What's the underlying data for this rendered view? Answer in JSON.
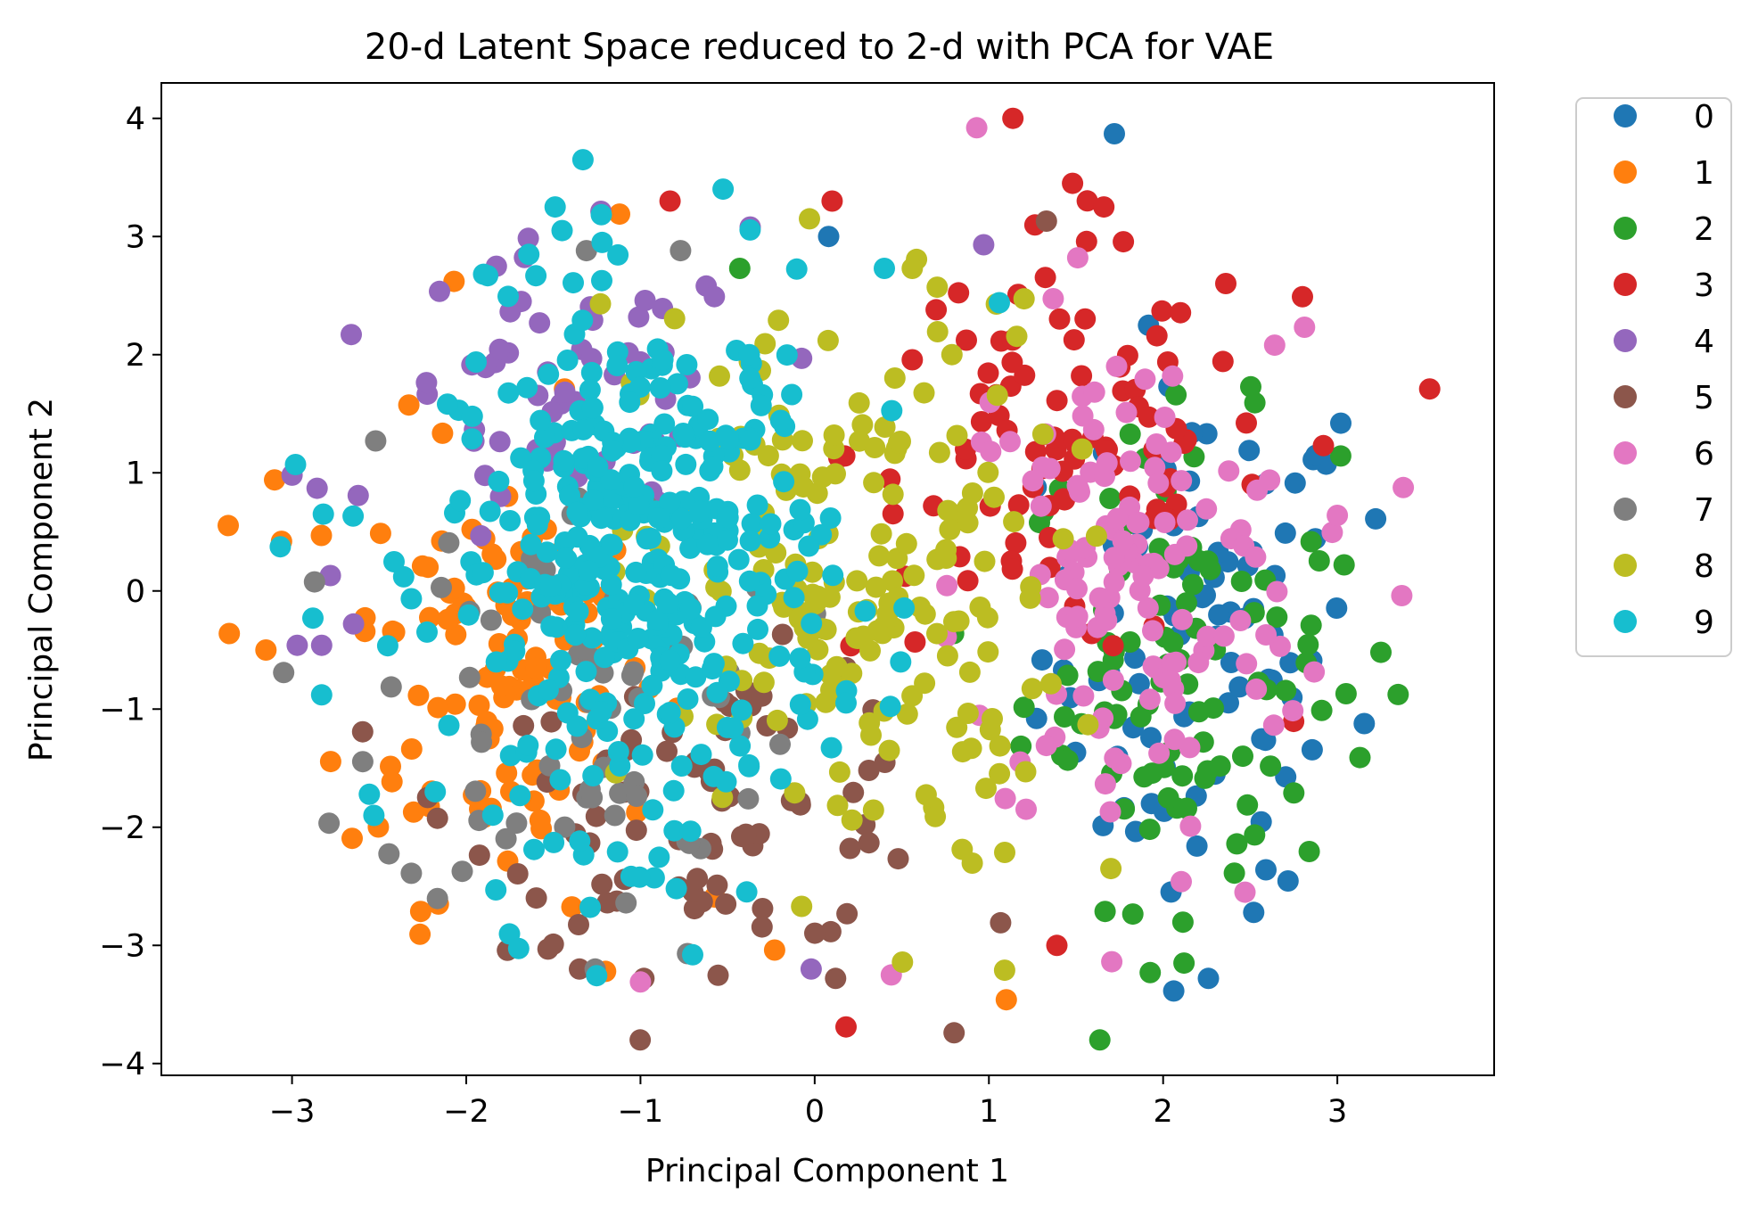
{
  "chart_data": {
    "type": "scatter",
    "title": "20-d Latent Space reduced to 2-d with PCA for VAE",
    "xlabel": "Principal Component 1",
    "ylabel": "Principal Component 2",
    "xlim": [
      -3.75,
      3.9
    ],
    "ylim": [
      -4.1,
      4.3
    ],
    "xticks": [
      -3,
      -2,
      -1,
      0,
      1,
      2,
      3
    ],
    "yticks": [
      -4,
      -3,
      -2,
      -1,
      0,
      1,
      2,
      3,
      4
    ],
    "xtick_labels": [
      "−3",
      "−2",
      "−1",
      "0",
      "1",
      "2",
      "3"
    ],
    "ytick_labels": [
      "−4",
      "−3",
      "−2",
      "−1",
      "0",
      "1",
      "2",
      "3",
      "4"
    ],
    "grid": false,
    "legend_position": "outside upper right",
    "series": [
      {
        "name": "0",
        "color": "#1f77b4",
        "center": [
          2.2,
          -0.5
        ],
        "spread": [
          0.45,
          1.1
        ],
        "count": 90,
        "outliers": [
          [
            1.72,
            3.87
          ],
          [
            2.26,
            -3.28
          ],
          [
            3.22,
            0.61
          ],
          [
            2.59,
            -2.36
          ],
          [
            0.08,
            3.0
          ],
          [
            3.02,
            1.42
          ]
        ]
      },
      {
        "name": "1",
        "color": "#ff7f0e",
        "center": [
          -1.8,
          -0.6
        ],
        "spread": [
          0.45,
          1.0
        ],
        "count": 110,
        "outliers": [
          [
            -3.36,
            -0.36
          ],
          [
            -3.15,
            -0.5
          ],
          [
            -3.1,
            0.94
          ],
          [
            -3.06,
            0.42
          ],
          [
            -2.16,
            -2.65
          ],
          [
            -1.12,
            3.19
          ],
          [
            -2.07,
            2.62
          ],
          [
            1.1,
            -3.46
          ],
          [
            -0.23,
            -3.04
          ],
          [
            -1.2,
            -3.22
          ]
        ]
      },
      {
        "name": "2",
        "color": "#2ca02c",
        "center": [
          2.1,
          -0.6
        ],
        "spread": [
          0.45,
          1.0
        ],
        "count": 100,
        "outliers": [
          [
            3.25,
            -0.52
          ],
          [
            3.13,
            -1.41
          ],
          [
            3.05,
            -0.87
          ],
          [
            2.12,
            -3.15
          ],
          [
            2.75,
            -1.71
          ],
          [
            -0.43,
            2.73
          ]
        ]
      },
      {
        "name": "3",
        "color": "#d62728",
        "center": [
          1.4,
          1.2
        ],
        "spread": [
          0.6,
          0.9
        ],
        "count": 95,
        "outliers": [
          [
            3.53,
            1.71
          ],
          [
            2.8,
            2.49
          ],
          [
            0.1,
            3.3
          ],
          [
            0.18,
            -3.69
          ],
          [
            1.39,
            -3.0
          ],
          [
            2.92,
            1.23
          ],
          [
            -0.83,
            3.3
          ],
          [
            1.48,
            3.45
          ],
          [
            1.66,
            3.25
          ]
        ]
      },
      {
        "name": "4",
        "color": "#9467bd",
        "center": [
          -1.4,
          1.5
        ],
        "spread": [
          0.55,
          0.7
        ],
        "count": 60,
        "outliers": [
          [
            -3.0,
            0.98
          ],
          [
            -2.97,
            -0.46
          ],
          [
            -2.83,
            -0.46
          ],
          [
            -2.78,
            0.13
          ],
          [
            -2.66,
            2.17
          ],
          [
            -0.37,
            3.08
          ],
          [
            0.97,
            2.93
          ],
          [
            -0.02,
            -3.2
          ]
        ]
      },
      {
        "name": "5",
        "color": "#8c564b",
        "center": [
          -0.6,
          -1.8
        ],
        "spread": [
          0.7,
          0.6
        ],
        "count": 80,
        "outliers": [
          [
            0.8,
            -3.74
          ],
          [
            1.33,
            3.13
          ],
          [
            0.12,
            -3.28
          ],
          [
            -1.35,
            -3.2
          ],
          [
            -1.5,
            -2.99
          ],
          [
            -0.98,
            -3.28
          ]
        ]
      },
      {
        "name": "6",
        "color": "#e377c2",
        "center": [
          1.8,
          0.0
        ],
        "spread": [
          0.5,
          1.1
        ],
        "count": 130,
        "outliers": [
          [
            0.93,
            3.92
          ],
          [
            3.37,
            -0.04
          ],
          [
            3.0,
            0.64
          ],
          [
            2.64,
            2.08
          ],
          [
            2.47,
            -2.55
          ],
          [
            -1.0,
            -3.31
          ],
          [
            0.44,
            -3.25
          ],
          [
            1.51,
            2.82
          ]
        ]
      },
      {
        "name": "7",
        "color": "#7f7f7f",
        "center": [
          -1.3,
          -0.9
        ],
        "spread": [
          0.6,
          0.9
        ],
        "count": 70,
        "outliers": [
          [
            -1.31,
            2.88
          ],
          [
            -1.26,
            -3.2
          ],
          [
            -0.73,
            -3.07
          ],
          [
            -2.52,
            1.27
          ],
          [
            -0.77,
            2.88
          ]
        ]
      },
      {
        "name": "8",
        "color": "#bcbd22",
        "center": [
          0.2,
          0.0
        ],
        "spread": [
          0.6,
          1.2
        ],
        "count": 190,
        "outliers": [
          [
            -0.03,
            3.15
          ],
          [
            1.09,
            -3.21
          ],
          [
            0.56,
            2.73
          ],
          [
            -1.23,
            2.43
          ],
          [
            1.7,
            -2.35
          ]
        ]
      },
      {
        "name": "9",
        "color": "#17becf",
        "center": [
          -1.0,
          0.2
        ],
        "spread": [
          0.55,
          1.1
        ],
        "count": 380,
        "outliers": [
          [
            -1.33,
            3.65
          ],
          [
            -1.49,
            3.25
          ],
          [
            -1.45,
            3.05
          ],
          [
            -2.98,
            1.07
          ],
          [
            -2.82,
            0.65
          ],
          [
            -2.83,
            -0.88
          ],
          [
            -2.53,
            -1.9
          ],
          [
            -1.83,
            -2.53
          ],
          [
            -2.88,
            -0.23
          ],
          [
            -0.7,
            -3.08
          ],
          [
            -1.9,
            2.68
          ],
          [
            1.06,
            2.44
          ],
          [
            0.4,
            2.73
          ],
          [
            -1.22,
            2.95
          ]
        ]
      }
    ]
  }
}
